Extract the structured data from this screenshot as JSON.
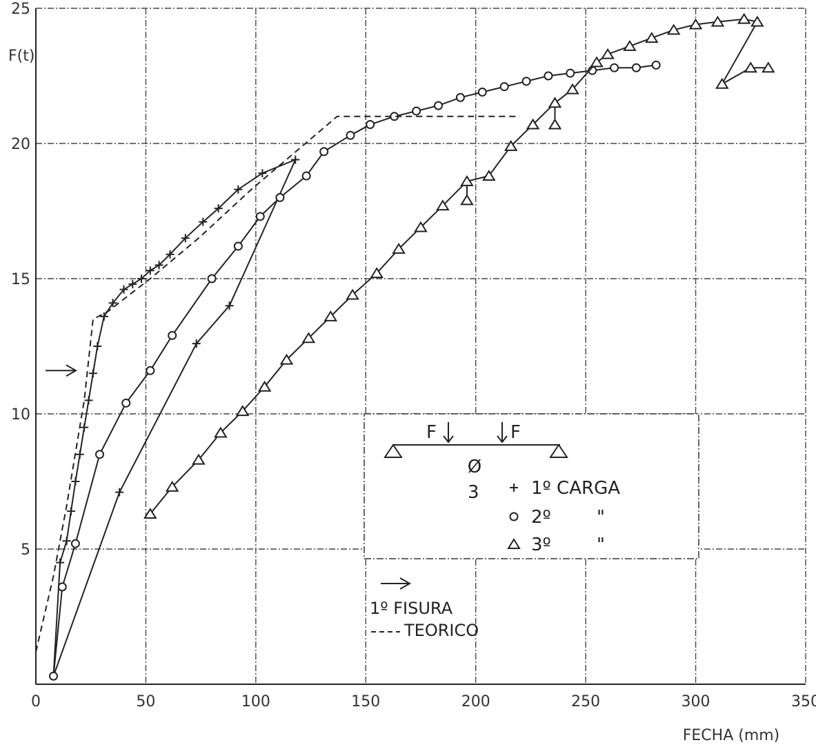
{
  "chart_data": {
    "type": "line",
    "title": "",
    "xlabel": "FECHA (mm)",
    "ylabel": "F(t)",
    "xlim": [
      0,
      350
    ],
    "ylim": [
      0,
      25
    ],
    "x_ticks": [
      0,
      50,
      100,
      150,
      200,
      250,
      300,
      350
    ],
    "y_ticks": [
      5,
      10,
      15,
      20,
      25
    ],
    "y_tick_labels": [
      "5",
      "10",
      "15",
      "20",
      "25"
    ],
    "x_tick_labels": [
      "0",
      "50",
      "100",
      "150",
      "200",
      "250",
      "300",
      "350"
    ],
    "grid": true,
    "series": [
      {
        "name": "1º CARGA",
        "marker": "+",
        "points": [
          [
            8,
            0.3
          ],
          [
            11,
            4.5
          ],
          [
            14,
            5.3
          ],
          [
            16,
            6.4
          ],
          [
            18,
            7.5
          ],
          [
            20,
            8.5
          ],
          [
            22,
            9.5
          ],
          [
            24,
            10.5
          ],
          [
            26,
            11.5
          ],
          [
            28,
            12.5
          ],
          [
            31,
            13.6
          ],
          [
            35,
            14.1
          ],
          [
            40,
            14.6
          ],
          [
            44,
            14.8
          ],
          [
            48,
            15.0
          ],
          [
            52,
            15.3
          ],
          [
            56,
            15.5
          ],
          [
            61,
            15.9
          ],
          [
            68,
            16.5
          ],
          [
            76,
            17.1
          ],
          [
            83,
            17.6
          ],
          [
            92,
            18.3
          ],
          [
            103,
            18.9
          ],
          [
            118,
            19.4
          ],
          [
            118,
            19.4
          ],
          [
            88,
            14.0
          ],
          [
            73,
            12.6
          ],
          [
            38,
            7.1
          ],
          [
            8,
            0.3
          ]
        ]
      },
      {
        "name": "2º",
        "marker": "o",
        "points": [
          [
            8,
            0.3
          ],
          [
            12,
            3.6
          ],
          [
            18,
            5.2
          ],
          [
            29,
            8.5
          ],
          [
            41,
            10.4
          ],
          [
            52,
            11.6
          ],
          [
            62,
            12.9
          ],
          [
            80,
            15.0
          ],
          [
            92,
            16.2
          ],
          [
            102,
            17.3
          ],
          [
            111,
            18.0
          ],
          [
            123,
            18.8
          ],
          [
            131,
            19.7
          ],
          [
            143,
            20.3
          ],
          [
            152,
            20.7
          ],
          [
            163,
            21.0
          ],
          [
            173,
            21.2
          ],
          [
            183,
            21.4
          ],
          [
            193,
            21.7
          ],
          [
            203,
            21.9
          ],
          [
            213,
            22.1
          ],
          [
            223,
            22.3
          ],
          [
            233,
            22.5
          ],
          [
            243,
            22.6
          ],
          [
            253,
            22.7
          ],
          [
            263,
            22.8
          ],
          [
            273,
            22.8
          ],
          [
            282,
            22.9
          ]
        ]
      },
      {
        "name": "3º",
        "marker": "triangle",
        "points": [
          [
            52,
            6.3
          ],
          [
            62,
            7.3
          ],
          [
            74,
            8.3
          ],
          [
            84,
            9.3
          ],
          [
            94,
            10.1
          ],
          [
            104,
            11.0
          ],
          [
            114,
            12.0
          ],
          [
            124,
            12.8
          ],
          [
            134,
            13.6
          ],
          [
            144,
            14.4
          ],
          [
            155,
            15.2
          ],
          [
            165,
            16.1
          ],
          [
            175,
            16.9
          ],
          [
            185,
            17.7
          ],
          [
            196,
            18.6
          ],
          [
            196,
            17.9
          ],
          [
            196,
            18.6
          ],
          [
            206,
            18.8
          ],
          [
            216,
            19.9
          ],
          [
            226,
            20.7
          ],
          [
            236,
            21.5
          ],
          [
            236,
            20.7
          ],
          [
            236,
            21.5
          ],
          [
            244,
            22.0
          ],
          [
            255,
            23.0
          ],
          [
            260,
            23.3
          ],
          [
            270,
            23.6
          ],
          [
            280,
            23.9
          ],
          [
            290,
            24.2
          ],
          [
            300,
            24.4
          ],
          [
            310,
            24.5
          ],
          [
            322,
            24.6
          ],
          [
            328,
            24.5
          ],
          [
            312,
            22.2
          ],
          [
            325,
            22.8
          ],
          [
            333,
            22.8
          ]
        ]
      },
      {
        "name": "TEORICO",
        "style": "dashed",
        "points": [
          [
            0,
            1.2
          ],
          [
            8,
            4.0
          ],
          [
            14,
            6.6
          ],
          [
            22,
            10.5
          ],
          [
            26,
            13.5
          ],
          [
            33,
            13.8
          ],
          [
            52,
            15.0
          ],
          [
            74,
            16.5
          ],
          [
            98,
            18.3
          ],
          [
            137,
            21.0
          ],
          [
            220,
            21.0
          ]
        ]
      }
    ],
    "legend": {
      "placement": "bottom-right",
      "load_labels": [
        "F",
        "F"
      ],
      "diameter_symbol": "Ø",
      "diameter_value": "3",
      "entries": [
        {
          "symbol": "+",
          "label": "1º CARGA"
        },
        {
          "symbol": "o",
          "label": "2º",
          "ditto": "\""
        },
        {
          "symbol": "triangle",
          "label": "3º",
          "ditto": "\""
        }
      ]
    },
    "annotations": [
      {
        "text": "1º FISURA",
        "arrow": true,
        "y": 11.6
      },
      {
        "text": "TEORICO",
        "style": "dashed"
      }
    ]
  }
}
